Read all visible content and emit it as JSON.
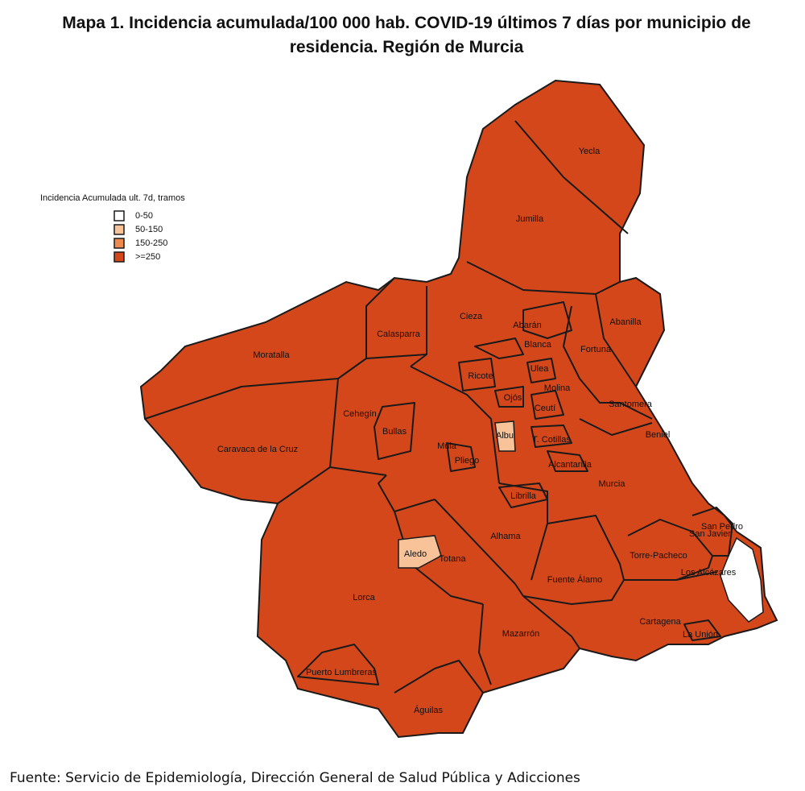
{
  "title": "Mapa 1. Incidencia acumulada/100 000 hab. COVID-19 últimos 7 días por municipio de residencia. Región de Murcia",
  "legend": {
    "title": "Incidencia Acumulada ult. 7d, tramos",
    "items": [
      {
        "label": "0-50",
        "color": "#ffffff"
      },
      {
        "label": "50-150",
        "color": "#f9c39a"
      },
      {
        "label": "150-250",
        "color": "#ef8a4f"
      },
      {
        "label": ">=250",
        "color": "#d4471a"
      }
    ]
  },
  "municipalities": [
    "Yecla",
    "Jumilla",
    "Abanilla",
    "Cieza",
    "Calasparra",
    "Moratalla",
    "Abarán",
    "Blanca",
    "Fortuna",
    "Ricote",
    "Ulea",
    "Molina",
    "Ojós",
    "Ceutí",
    "Santomera",
    "Cehegín",
    "Bullas",
    "Mula",
    "Pliego",
    "Albu",
    "T. Cotillas",
    "Alcantarilla",
    "Beniel",
    "Murcia",
    "Caravaca de la Cruz",
    "Librilla",
    "San Pedro",
    "San Javier",
    "Alhama",
    "Aledo",
    "Totana",
    "Torre-Pacheco",
    "Los Alcázares",
    "Fuente Álamo",
    "Lorca",
    "Cartagena",
    "La Unión",
    "Mazarrón",
    "Puerto Lumbreras",
    "Águilas"
  ],
  "source": "Fuente: Servicio de Epidemiología, Dirección General de Salud Pública y Adicciones"
}
